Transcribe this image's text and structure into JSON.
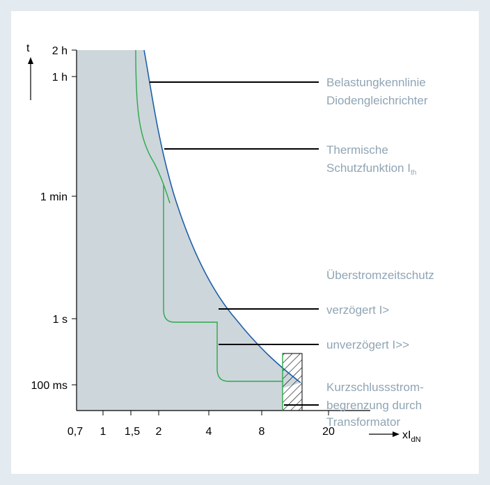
{
  "axes": {
    "y_symbol": "t",
    "y_ticks": [
      "2 h",
      "1 h",
      "1 min",
      "1 s",
      "100 ms"
    ],
    "x_ticks": [
      "0,7",
      "1",
      "1,5",
      "2",
      "4",
      "8",
      "20"
    ],
    "x_symbol": "xI",
    "x_symbol_sub": "dN"
  },
  "labels": {
    "belastung_line1": "Belastungkennlinie",
    "belastung_line2": "Diodengleichrichter",
    "thermisch_line1": "Thermische",
    "thermisch_line2": "Schutzfunktion I",
    "thermisch_sub": "th",
    "ueberstrom": "Überstromzeitschutz",
    "verzoegert": "verzögert I>",
    "unverzoegert": "unverzögert I>>",
    "kurz_line1": "Kurzschlussstrom-",
    "kurz_line2": "begrenzung durch",
    "kurz_line3": "Transformator"
  },
  "colors": {
    "background": "#e3eaf0",
    "panel": "#ffffff",
    "shaded_area": "#cdd6db",
    "load_curve": "#1f5fa8",
    "protection_curve": "#2aa84a",
    "label_text": "#8fa5b4",
    "leader_line": "#000000"
  }
}
